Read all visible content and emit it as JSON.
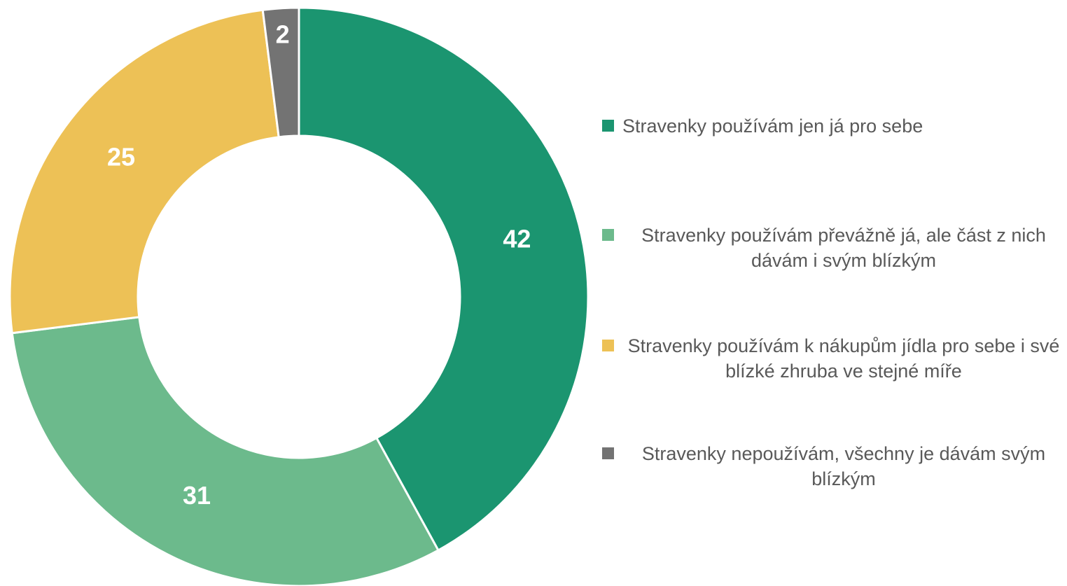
{
  "chart_data": {
    "type": "donut",
    "categories": [
      "Stravenky používám jen já pro sebe",
      "Stravenky používám převážně já, ale část z nich dávám i svým blízkým",
      "Stravenky používám k nákupům jídla pro sebe i své blízké zhruba ve stejné míře",
      "Stravenky nepoužívám, všechny je dávám svým blízkým"
    ],
    "values": [
      42,
      31,
      25,
      2
    ],
    "colors": [
      "#1b9570",
      "#6cba8c",
      "#edc156",
      "#737373"
    ],
    "legend": "right"
  }
}
